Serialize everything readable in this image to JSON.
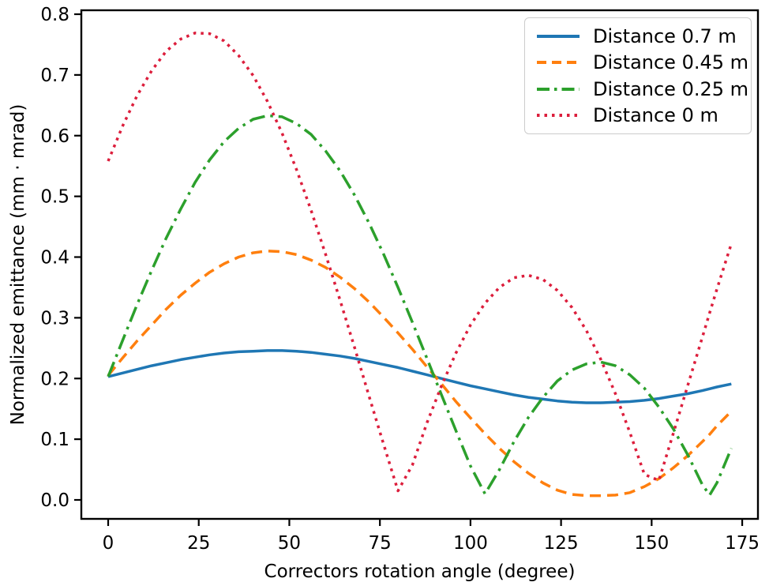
{
  "figure": {
    "background": "#ffffff",
    "axis_color": "#000000"
  },
  "chart_data": {
    "type": "line",
    "title": "",
    "xlabel": "Correctors rotation angle (degree)",
    "ylabel": "Normalized emittance (mm · mrad)",
    "xlim": [
      -7.5,
      179.5
    ],
    "ylim": [
      -0.031,
      0.807
    ],
    "grid": false,
    "legend_position": "upper right",
    "xticks": [
      "0",
      "25",
      "50",
      "75",
      "100",
      "125",
      "150",
      "175"
    ],
    "yticks": [
      "0.0",
      "0.1",
      "0.2",
      "0.3",
      "0.4",
      "0.5",
      "0.6",
      "0.7",
      "0.8"
    ],
    "x": [
      0,
      4,
      8,
      12,
      16,
      20,
      24,
      28,
      32,
      36,
      40,
      44,
      48,
      52,
      56,
      60,
      64,
      68,
      72,
      76,
      80,
      84,
      88,
      92,
      96,
      100,
      104,
      108,
      112,
      116,
      120,
      124,
      128,
      132,
      136,
      140,
      144,
      148,
      152,
      156,
      160,
      164,
      166,
      168,
      172
    ],
    "series": [
      {
        "name": "Distance 0.7 m",
        "color": "#1f77b4",
        "style": "solid",
        "values": [
          0.203,
          0.209,
          0.215,
          0.221,
          0.226,
          0.231,
          0.235,
          0.239,
          0.242,
          0.244,
          0.245,
          0.246,
          0.246,
          0.245,
          0.243,
          0.24,
          0.237,
          0.233,
          0.228,
          0.223,
          0.218,
          0.212,
          0.206,
          0.2,
          0.194,
          0.188,
          0.183,
          0.178,
          0.173,
          0.169,
          0.166,
          0.163,
          0.161,
          0.16,
          0.16,
          0.161,
          0.162,
          0.164,
          0.167,
          0.171,
          0.175,
          0.18,
          0.183,
          0.186,
          0.191
        ]
      },
      {
        "name": "Distance 0.45 m",
        "color": "#ff7f0e",
        "style": "dashed",
        "values": [
          0.205,
          0.234,
          0.262,
          0.288,
          0.314,
          0.337,
          0.357,
          0.375,
          0.389,
          0.4,
          0.407,
          0.41,
          0.409,
          0.404,
          0.395,
          0.383,
          0.367,
          0.348,
          0.326,
          0.301,
          0.275,
          0.248,
          0.219,
          0.191,
          0.162,
          0.135,
          0.109,
          0.085,
          0.063,
          0.044,
          0.028,
          0.016,
          0.009,
          0.007,
          0.007,
          0.008,
          0.012,
          0.022,
          0.035,
          0.053,
          0.073,
          0.096,
          0.108,
          0.122,
          0.146
        ]
      },
      {
        "name": "Distance 0.25 m",
        "color": "#2ca02c",
        "style": "dashdot",
        "values": [
          0.203,
          0.263,
          0.322,
          0.378,
          0.431,
          0.479,
          0.523,
          0.56,
          0.59,
          0.612,
          0.627,
          0.633,
          0.631,
          0.62,
          0.602,
          0.575,
          0.542,
          0.502,
          0.456,
          0.405,
          0.35,
          0.292,
          0.233,
          0.173,
          0.114,
          0.056,
          0.01,
          0.05,
          0.096,
          0.136,
          0.169,
          0.196,
          0.214,
          0.224,
          0.227,
          0.221,
          0.206,
          0.184,
          0.153,
          0.117,
          0.074,
          0.025,
          0.008,
          0.028,
          0.085
        ]
      },
      {
        "name": "Distance 0 m",
        "color": "#dc1e3c",
        "style": "dotted",
        "values": [
          0.558,
          0.616,
          0.666,
          0.707,
          0.739,
          0.759,
          0.769,
          0.768,
          0.756,
          0.732,
          0.699,
          0.656,
          0.604,
          0.544,
          0.477,
          0.405,
          0.329,
          0.251,
          0.171,
          0.092,
          0.015,
          0.058,
          0.127,
          0.188,
          0.242,
          0.288,
          0.324,
          0.35,
          0.366,
          0.37,
          0.363,
          0.345,
          0.317,
          0.279,
          0.231,
          0.175,
          0.111,
          0.042,
          0.032,
          0.11,
          0.189,
          0.268,
          0.308,
          0.347,
          0.422
        ]
      }
    ]
  }
}
